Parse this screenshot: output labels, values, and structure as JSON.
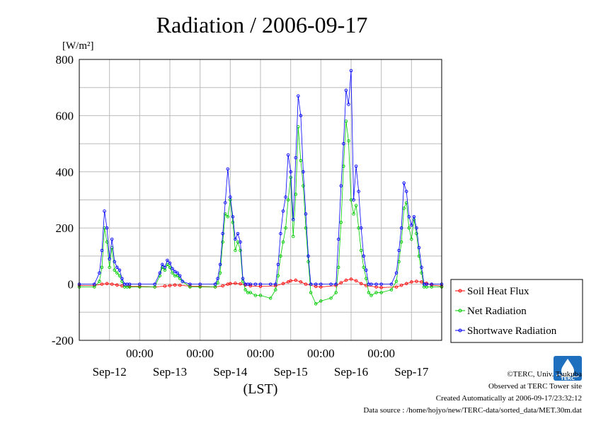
{
  "title": "Radiation / 2006-09-17",
  "footer": {
    "copyright": "©TERC, Univ. Tsukuba",
    "observed": "Observed at TERC Tower site",
    "created": "Created Automatically at 2006-09-17/23:32:12",
    "source": "Data source : /home/hojyo/new/TERC-data/sorted_data/MET.30m.dat"
  },
  "logo": {
    "text": "TERC"
  },
  "colors": {
    "soil": "#ff0000",
    "net": "#00cc00",
    "shortwave": "#0000ff",
    "grid": "#bbbbbb"
  },
  "chart_data": {
    "type": "line",
    "ylabel": "[W/m²]",
    "xlabel": "(LST)",
    "ylim": [
      -200,
      800
    ],
    "yticks": [
      "800",
      "600",
      "400",
      "200",
      "0",
      "-200"
    ],
    "ytick_values": [
      800,
      600,
      400,
      200,
      0,
      -200
    ],
    "xlim_hours": [
      0,
      144
    ],
    "time_ticks": [
      "00:00",
      "00:00",
      "00:00",
      "00:00",
      "00:00"
    ],
    "time_tick_hours": [
      24,
      48,
      72,
      96,
      120
    ],
    "date_labels": [
      "Sep-12",
      "Sep-13",
      "Sep-14",
      "Sep-15",
      "Sep-16",
      "Sep-17"
    ],
    "date_label_hours": [
      12,
      36,
      60,
      84,
      108,
      132
    ],
    "legend_position": "right",
    "grid": true,
    "series": [
      {
        "name": "Soil Heat Flux",
        "x": [
          0,
          6,
          9,
          11,
          13,
          15,
          17,
          20,
          24,
          30,
          34,
          36,
          38,
          40,
          44,
          48,
          54,
          57,
          59,
          60,
          62,
          64,
          66,
          68,
          72,
          78,
          81,
          83,
          84,
          86,
          88,
          90,
          94,
          96,
          102,
          104,
          106,
          108,
          110,
          112,
          114,
          118,
          120,
          126,
          128,
          130,
          132,
          134,
          136,
          138,
          140,
          144
        ],
        "y": [
          -5,
          -5,
          0,
          2,
          0,
          -3,
          -6,
          -8,
          -8,
          -10,
          -7,
          -5,
          -3,
          -4,
          -7,
          -8,
          -10,
          -6,
          0,
          2,
          3,
          1,
          -3,
          -6,
          -8,
          -6,
          2,
          8,
          12,
          14,
          8,
          0,
          -8,
          -10,
          -5,
          5,
          14,
          18,
          12,
          2,
          -5,
          -10,
          -12,
          -10,
          -4,
          2,
          8,
          10,
          8,
          3,
          -3,
          -7
        ]
      },
      {
        "name": "Net Radiation",
        "x": [
          0,
          6,
          8,
          9,
          10,
          11,
          12,
          13,
          14,
          15,
          16,
          17,
          18,
          19,
          20,
          24,
          30,
          32,
          33,
          34,
          35,
          36,
          37,
          38,
          39,
          40,
          41,
          44,
          48,
          54,
          55,
          56,
          57,
          58,
          59,
          60,
          61,
          62,
          63,
          64,
          65,
          66,
          67,
          68,
          70,
          72,
          76,
          78,
          79,
          80,
          81,
          82,
          83,
          84,
          85,
          86,
          87,
          88,
          89,
          90,
          91,
          92,
          94,
          96,
          100,
          102,
          103,
          104,
          105,
          106,
          107,
          108,
          109,
          110,
          111,
          112,
          113,
          114,
          115,
          116,
          118,
          120,
          124,
          126,
          127,
          128,
          129,
          130,
          131,
          132,
          133,
          134,
          135,
          136,
          137,
          138,
          140,
          144
        ],
        "y": [
          -10,
          -10,
          10,
          60,
          200,
          150,
          60,
          130,
          50,
          40,
          30,
          10,
          -10,
          -10,
          -10,
          -10,
          -10,
          30,
          60,
          50,
          70,
          60,
          40,
          30,
          30,
          20,
          10,
          -10,
          -10,
          -10,
          5,
          40,
          150,
          250,
          240,
          300,
          220,
          120,
          150,
          120,
          10,
          -20,
          -30,
          -30,
          -40,
          -40,
          -50,
          -20,
          30,
          100,
          150,
          200,
          300,
          380,
          170,
          320,
          560,
          440,
          350,
          200,
          80,
          -30,
          -70,
          -60,
          -50,
          -30,
          60,
          220,
          420,
          580,
          510,
          300,
          250,
          280,
          200,
          120,
          60,
          20,
          -30,
          -40,
          -30,
          -30,
          -20,
          10,
          80,
          150,
          270,
          290,
          200,
          160,
          230,
          180,
          100,
          40,
          -10,
          -10,
          -10,
          -10
        ]
      },
      {
        "name": "Shortwave Radiation",
        "x": [
          0,
          6,
          8,
          9,
          10,
          11,
          12,
          13,
          14,
          15,
          16,
          17,
          18,
          19,
          20,
          24,
          30,
          32,
          33,
          34,
          35,
          36,
          37,
          38,
          39,
          40,
          41,
          44,
          48,
          54,
          55,
          56,
          57,
          58,
          59,
          60,
          61,
          62,
          63,
          64,
          65,
          66,
          67,
          68,
          70,
          72,
          76,
          78,
          79,
          80,
          81,
          82,
          83,
          84,
          85,
          86,
          87,
          88,
          89,
          90,
          91,
          92,
          94,
          96,
          100,
          102,
          103,
          104,
          105,
          106,
          107,
          108,
          109,
          110,
          111,
          112,
          113,
          114,
          115,
          116,
          118,
          120,
          124,
          126,
          127,
          128,
          129,
          130,
          131,
          132,
          133,
          134,
          135,
          136,
          137,
          138,
          140,
          144
        ],
        "y": [
          0,
          0,
          40,
          120,
          260,
          200,
          90,
          160,
          80,
          60,
          50,
          20,
          0,
          0,
          0,
          0,
          0,
          40,
          70,
          60,
          85,
          75,
          55,
          45,
          40,
          30,
          10,
          0,
          0,
          0,
          20,
          70,
          180,
          290,
          410,
          310,
          240,
          160,
          180,
          150,
          20,
          0,
          0,
          0,
          0,
          0,
          0,
          0,
          70,
          180,
          260,
          310,
          460,
          400,
          230,
          450,
          670,
          600,
          400,
          250,
          100,
          0,
          0,
          0,
          0,
          0,
          160,
          350,
          500,
          690,
          640,
          760,
          300,
          420,
          330,
          200,
          100,
          50,
          0,
          0,
          0,
          0,
          0,
          40,
          120,
          200,
          360,
          330,
          240,
          210,
          240,
          200,
          130,
          60,
          0,
          0,
          0,
          0
        ]
      }
    ]
  }
}
